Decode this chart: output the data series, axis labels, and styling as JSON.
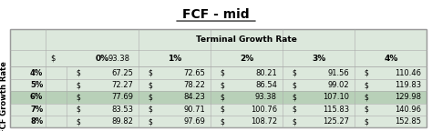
{
  "title": "FCF - mid",
  "corner_label": "$",
  "corner_value": "93.38",
  "col_header_label": "Terminal Growth Rate",
  "row_header_label": "FCF Growth Rate",
  "col_headers": [
    "0%",
    "1%",
    "2%",
    "3%",
    "4%"
  ],
  "row_headers": [
    "4%",
    "5%",
    "6%",
    "7%",
    "8%"
  ],
  "values": [
    [
      67.25,
      72.65,
      80.21,
      91.56,
      110.46
    ],
    [
      72.27,
      78.22,
      86.54,
      99.02,
      119.83
    ],
    [
      77.69,
      84.23,
      93.38,
      107.1,
      129.98
    ],
    [
      83.53,
      90.71,
      100.76,
      115.83,
      140.96
    ],
    [
      89.82,
      97.69,
      108.72,
      125.27,
      152.85
    ]
  ],
  "highlight_row": 2,
  "highlight_col": 2,
  "bg_color": "#dce8dc",
  "highlight_row_color": "#b8d0b8",
  "white": "#ffffff",
  "text_color": "#000000",
  "title_color": "#000000",
  "grid_color": "#aaaaaa"
}
